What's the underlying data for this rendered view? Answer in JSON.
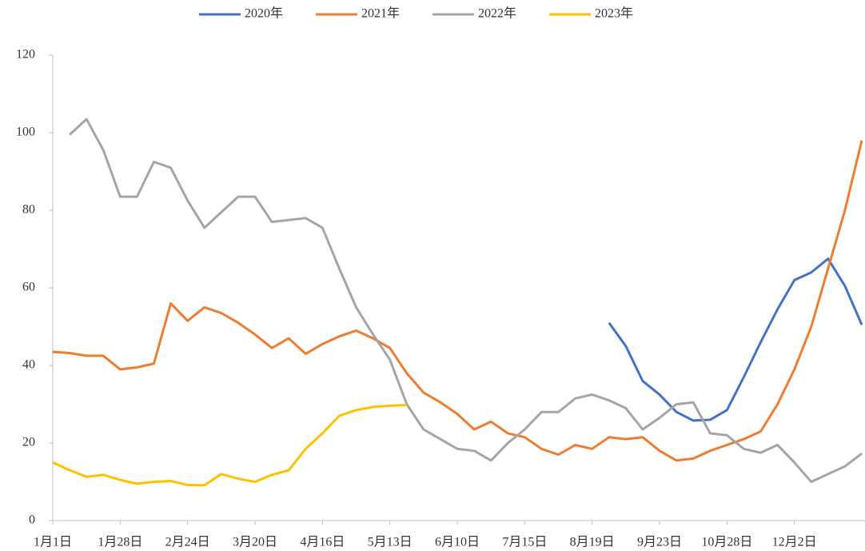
{
  "chart_data": {
    "type": "line",
    "categories": [
      "1月1日",
      null,
      null,
      null,
      "1月28日",
      null,
      null,
      null,
      "2月24日",
      null,
      null,
      null,
      "3月20日",
      null,
      null,
      null,
      "4月16日",
      null,
      null,
      null,
      "5月13日",
      null,
      null,
      null,
      "6月10日",
      null,
      null,
      null,
      "7月15日",
      null,
      null,
      null,
      "8月19日",
      null,
      null,
      null,
      "9月23日",
      null,
      null,
      null,
      "10月28日",
      null,
      null,
      null,
      "12月2日",
      null,
      null,
      null,
      null
    ],
    "series": [
      {
        "name": "2020年",
        "color": "#4472c4",
        "values": [
          null,
          null,
          null,
          null,
          null,
          null,
          null,
          null,
          null,
          null,
          null,
          null,
          null,
          null,
          null,
          null,
          null,
          null,
          null,
          null,
          null,
          null,
          null,
          null,
          null,
          null,
          null,
          null,
          null,
          null,
          null,
          null,
          null,
          51,
          45,
          36,
          32.5,
          28,
          25.8,
          26,
          28.5,
          37,
          46,
          54.5,
          62,
          64,
          67.5,
          60.5,
          50.5
        ]
      },
      {
        "name": "2021年",
        "color": "#ed7d31",
        "values": [
          43.5,
          43.2,
          42.5,
          42.5,
          39,
          39.5,
          40.5,
          56,
          51.5,
          55,
          53.5,
          51,
          48,
          44.5,
          47,
          43,
          45.5,
          47.5,
          49,
          47,
          44.5,
          38,
          33,
          30.5,
          27.5,
          23.5,
          25.5,
          22.5,
          21.5,
          18.5,
          17,
          19.5,
          18.5,
          21.5,
          21,
          21.5,
          18,
          15.5,
          16,
          18,
          19.5,
          21,
          23,
          30,
          39,
          50,
          65,
          80,
          98
        ]
      },
      {
        "name": "2022年",
        "color": "#a5a5a5",
        "values": [
          null,
          99.5,
          103.5,
          95.5,
          83.5,
          83.5,
          92.5,
          91,
          82.5,
          75.5,
          79.5,
          83.5,
          83.5,
          77,
          77.5,
          78,
          75.5,
          65,
          55,
          48,
          41.5,
          30,
          23.5,
          21,
          18.5,
          18,
          15.5,
          20,
          23.5,
          28,
          28,
          31.5,
          32.5,
          31,
          29,
          23.5,
          26.5,
          30,
          30.5,
          22.5,
          22,
          18.5,
          17.5,
          19.5,
          15,
          10,
          12,
          14,
          17.3
        ]
      },
      {
        "name": "2023年",
        "color": "#ffc000",
        "values": [
          15,
          13,
          11.3,
          11.8,
          10.5,
          9.5,
          10,
          10.2,
          9.2,
          9.1,
          12,
          10.8,
          10,
          11.8,
          13,
          18.5,
          22.5,
          27,
          28.5,
          29.3,
          29.6,
          29.8,
          null,
          null,
          null,
          null,
          null,
          null,
          null,
          null,
          null,
          null,
          null,
          null,
          null,
          null,
          null,
          null,
          null,
          null,
          null,
          null,
          null,
          null,
          null,
          null,
          null,
          null,
          null
        ]
      }
    ],
    "ylim": [
      0,
      120
    ],
    "yticks": [
      0,
      20,
      40,
      60,
      80,
      100,
      120
    ],
    "grid": false,
    "legend": "top"
  }
}
